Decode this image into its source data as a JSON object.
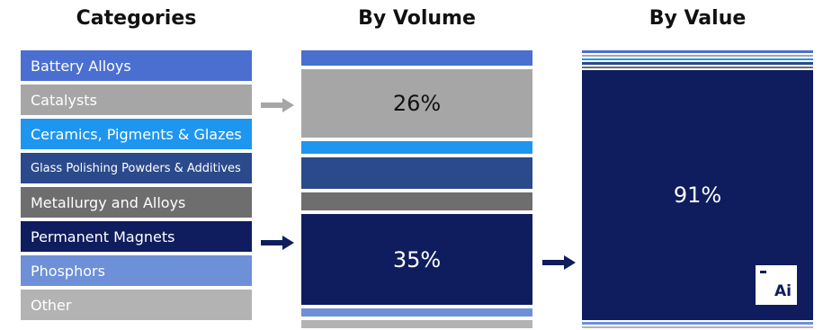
{
  "chart_data": {
    "type": "table",
    "columns": [
      "Categories",
      "By Volume",
      "By Value"
    ],
    "categories": [
      {
        "label": "Battery Alloys",
        "color": "#4a6fd1"
      },
      {
        "label": "Catalysts",
        "color": "#a6a6a6"
      },
      {
        "label": "Ceramics, Pigments & Glazes",
        "color": "#1e96f0"
      },
      {
        "label": "Glass Polishing Powders & Additives",
        "color": "#2b4a8c"
      },
      {
        "label": "Metallurgy and Alloys",
        "color": "#6e6e6e"
      },
      {
        "label": "Permanent Magnets",
        "color": "#0f1d5e"
      },
      {
        "label": "Phosphors",
        "color": "#6d90d8"
      },
      {
        "label": "Other",
        "color": "#b3b3b3"
      }
    ],
    "by_volume": [
      {
        "category": "Battery Alloys",
        "value": 6
      },
      {
        "category": "Catalysts",
        "value": 26,
        "label": "26%"
      },
      {
        "category": "Ceramics, Pigments & Glazes",
        "value": 5
      },
      {
        "category": "Glass Polishing Powders & Additives",
        "value": 12
      },
      {
        "category": "Metallurgy and Alloys",
        "value": 7
      },
      {
        "category": "Permanent Magnets",
        "value": 35,
        "label": "35%"
      },
      {
        "category": "Phosphors",
        "value": 3
      },
      {
        "category": "Other",
        "value": 3
      }
    ],
    "by_value": [
      {
        "category": "Battery Alloys",
        "value": 1
      },
      {
        "category": "Catalysts",
        "value": 0.6
      },
      {
        "category": "Ceramics, Pigments & Glazes",
        "value": 0.6
      },
      {
        "category": "Glass Polishing Powders & Additives",
        "value": 1
      },
      {
        "category": "Metallurgy and Alloys",
        "value": 0.6
      },
      {
        "category": "Permanent Magnets",
        "value": 91,
        "label": "91%"
      },
      {
        "category": "Phosphors",
        "value": 1
      },
      {
        "category": "Other",
        "value": 0.6
      }
    ]
  },
  "logo": {
    "text": "Ai"
  },
  "colors": {
    "gray_arrow": "#a6a6a6",
    "navy_arrow": "#0f1d5e",
    "dark_text": "#111111"
  }
}
